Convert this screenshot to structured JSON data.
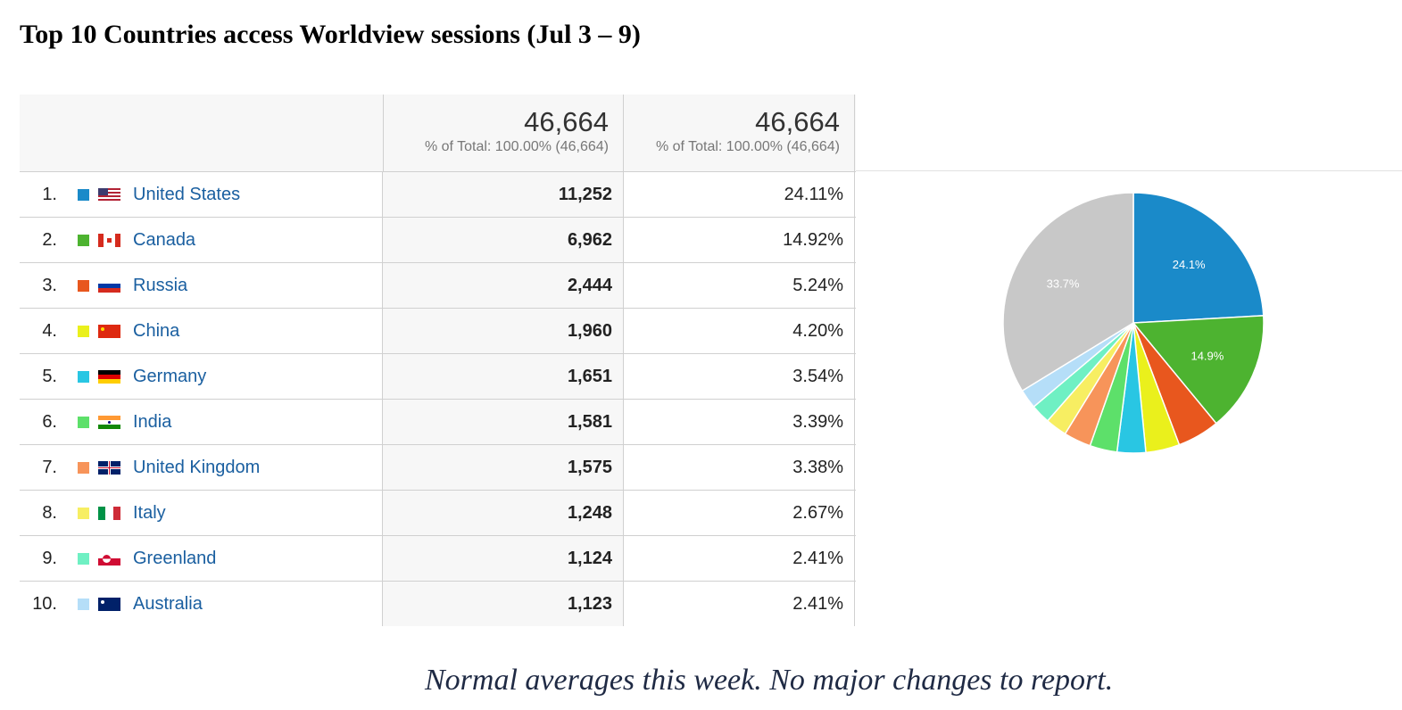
{
  "title": "Top 10 Countries access Worldview sessions (Jul 3 – 9)",
  "header": {
    "sessions_total": "46,664",
    "sessions_sub": "% of Total: 100.00% (46,664)",
    "percent_total": "46,664",
    "percent_sub": "% of Total: 100.00% (46,664)"
  },
  "rows": [
    {
      "rank": "1.",
      "country": "United States",
      "sessions": "11,252",
      "percent": "24.11%",
      "color": "#1a8ac9",
      "flag": "flag-us-icon"
    },
    {
      "rank": "2.",
      "country": "Canada",
      "sessions": "6,962",
      "percent": "14.92%",
      "color": "#4db330",
      "flag": "flag-ca-icon"
    },
    {
      "rank": "3.",
      "country": "Russia",
      "sessions": "2,444",
      "percent": "5.24%",
      "color": "#e8571e",
      "flag": "flag-ru-icon"
    },
    {
      "rank": "4.",
      "country": "China",
      "sessions": "1,960",
      "percent": "4.20%",
      "color": "#eaf01c",
      "flag": "flag-cn-icon"
    },
    {
      "rank": "5.",
      "country": "Germany",
      "sessions": "1,651",
      "percent": "3.54%",
      "color": "#29c6e3",
      "flag": "flag-de-icon"
    },
    {
      "rank": "6.",
      "country": "India",
      "sessions": "1,581",
      "percent": "3.39%",
      "color": "#5de06a",
      "flag": "flag-in-icon"
    },
    {
      "rank": "7.",
      "country": "United Kingdom",
      "sessions": "1,575",
      "percent": "3.38%",
      "color": "#f7945a",
      "flag": "flag-gb-icon"
    },
    {
      "rank": "8.",
      "country": "Italy",
      "sessions": "1,248",
      "percent": "2.67%",
      "color": "#f7ee62",
      "flag": "flag-it-icon"
    },
    {
      "rank": "9.",
      "country": "Greenland",
      "sessions": "1,124",
      "percent": "2.41%",
      "color": "#6ff0c3",
      "flag": "flag-gl-icon"
    },
    {
      "rank": "10.",
      "country": "Australia",
      "sessions": "1,123",
      "percent": "2.41%",
      "color": "#b5def8",
      "flag": "flag-au-icon"
    }
  ],
  "chart_data": {
    "type": "pie",
    "categories": [
      "United States",
      "Canada",
      "Russia",
      "China",
      "Germany",
      "India",
      "United Kingdom",
      "Italy",
      "Greenland",
      "Australia",
      "(other)"
    ],
    "values": [
      24.11,
      14.92,
      5.24,
      4.2,
      3.54,
      3.39,
      3.38,
      2.67,
      2.41,
      2.41,
      33.73
    ],
    "colors": [
      "#1a8ac9",
      "#4db330",
      "#e8571e",
      "#eaf01c",
      "#29c6e3",
      "#5de06a",
      "#f7945a",
      "#f7ee62",
      "#6ff0c3",
      "#b5def8",
      "#c8c8c8"
    ],
    "data_labels": [
      "24.1%",
      "14.9%",
      "",
      "",
      "",
      "",
      "",
      "",
      "",
      "",
      "33.7%"
    ]
  },
  "note": "Normal averages this week.  No major changes to report."
}
